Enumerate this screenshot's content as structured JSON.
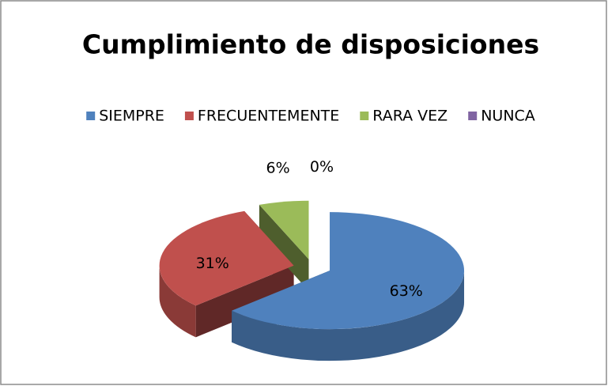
{
  "chart_data": {
    "type": "pie",
    "title": "Cumplimiento de disposiciones",
    "categories": [
      "SIEMPRE",
      "FRECUENTEMENTE",
      "RARA VEZ",
      "NUNCA"
    ],
    "values": [
      63,
      31,
      6,
      0
    ],
    "value_labels": [
      "63%",
      "31%",
      "6%",
      "0%"
    ],
    "colors": [
      "#4f81bd",
      "#c0504d",
      "#9bbb59",
      "#8064a2"
    ],
    "legend": "top",
    "exploded": true,
    "three_d": true
  }
}
